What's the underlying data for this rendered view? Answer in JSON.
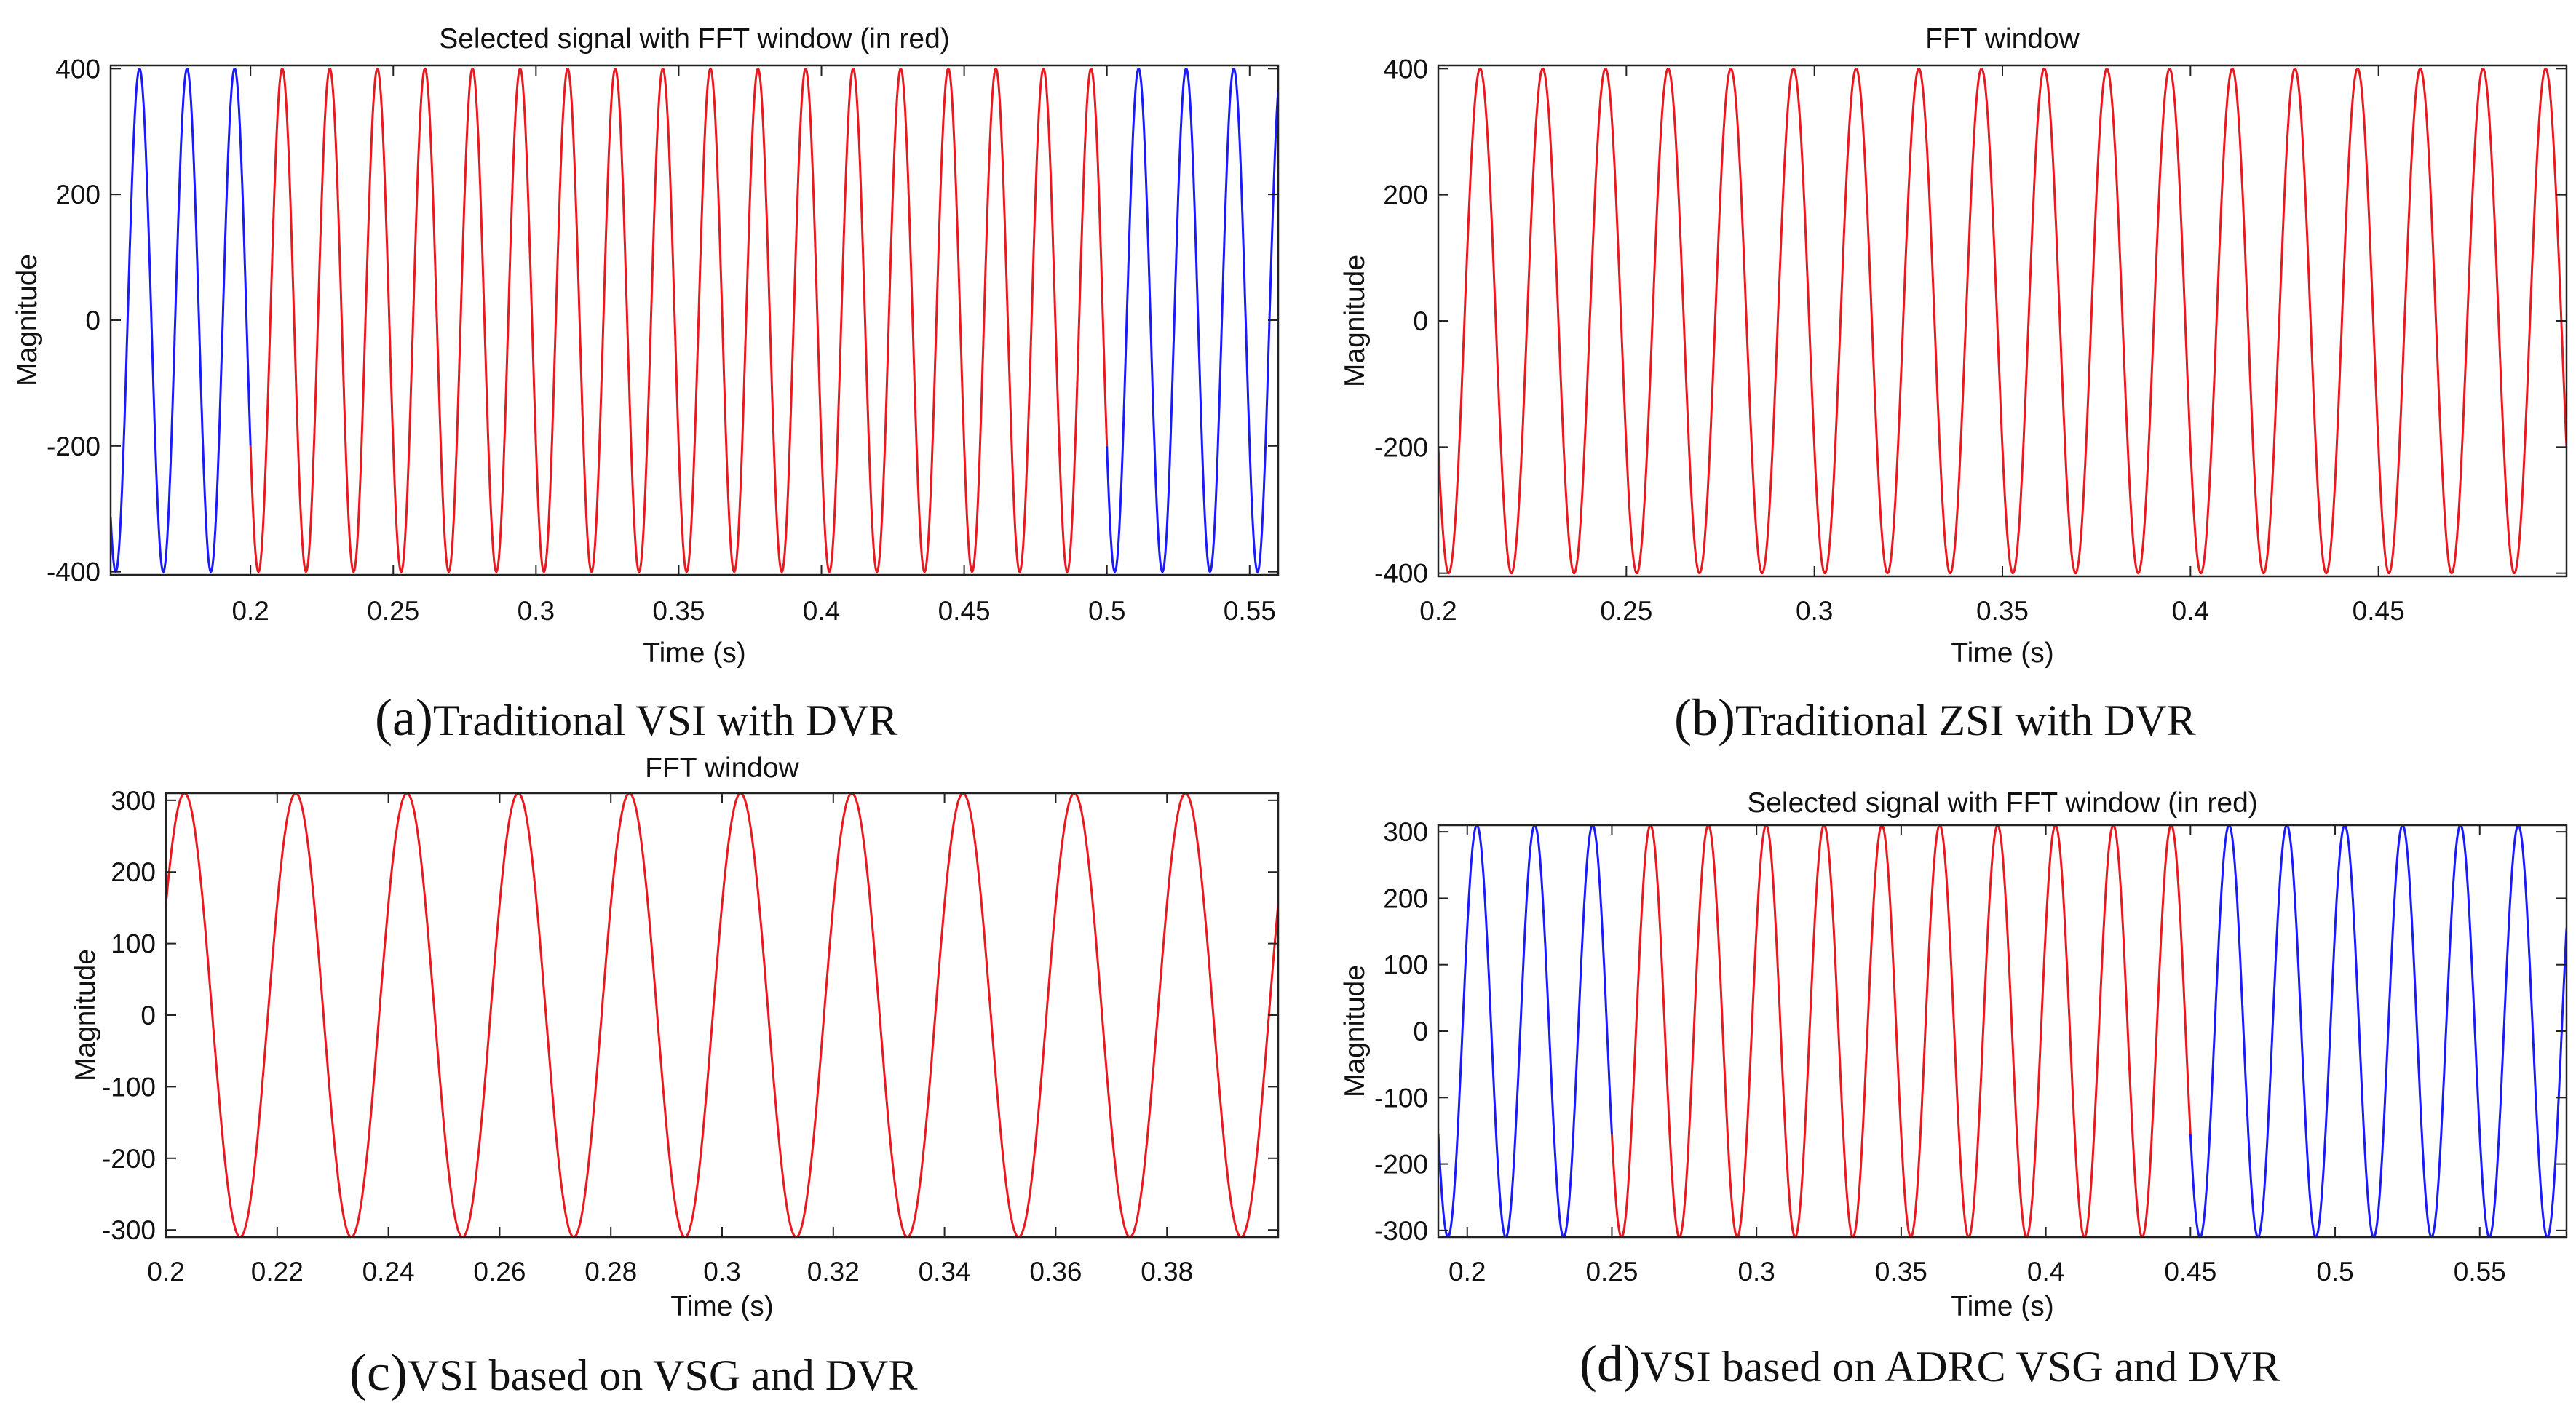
{
  "chart_data": [
    {
      "id": "a",
      "type": "line",
      "title": "Selected signal with FFT window (in red)",
      "xlabel": "Time (s)",
      "ylabel": "Magnitude",
      "xlim": [
        0.151,
        0.56
      ],
      "ylim": [
        -405,
        405
      ],
      "xticks": [
        0.2,
        0.25,
        0.3,
        0.35,
        0.4,
        0.45,
        0.5,
        0.55
      ],
      "xtick_labels": [
        "0.2",
        "0.25",
        "0.3",
        "0.35",
        "0.4",
        "0.45",
        "0.5",
        "0.55"
      ],
      "yticks": [
        -400,
        -200,
        0,
        200,
        400
      ],
      "ytick_labels": [
        "-400",
        "-200",
        "0",
        "200",
        "400"
      ],
      "signal": {
        "amplitude": 400,
        "frequency_hz": 60,
        "phase_deg": 210
      },
      "series": [
        {
          "name": "Signal",
          "color": "#1a1aff",
          "x_range": [
            0.151,
            0.2
          ]
        },
        {
          "name": "FFT window",
          "color": "#e8191f",
          "x_range": [
            0.2,
            0.5
          ]
        },
        {
          "name": "Signal",
          "color": "#1a1aff",
          "x_range": [
            0.5,
            0.56
          ]
        }
      ],
      "caption_letter": "(a)",
      "caption_text": "Traditional VSI with DVR"
    },
    {
      "id": "b",
      "type": "line",
      "title": "FFT window",
      "xlabel": "Time (s)",
      "ylabel": "Magnitude",
      "xlim": [
        0.2,
        0.5
      ],
      "ylim": [
        -405,
        405
      ],
      "xticks": [
        0.2,
        0.25,
        0.3,
        0.35,
        0.4,
        0.45
      ],
      "xtick_labels": [
        "0.2",
        "0.25",
        "0.3",
        "0.35",
        "0.4",
        "0.45"
      ],
      "yticks": [
        -400,
        -200,
        0,
        200,
        400
      ],
      "ytick_labels": [
        "-400",
        "-200",
        "0",
        "200",
        "400"
      ],
      "signal": {
        "amplitude": 400,
        "frequency_hz": 60,
        "phase_deg": 210
      },
      "series": [
        {
          "name": "FFT window",
          "color": "#e8191f",
          "x_range": [
            0.2,
            0.5
          ]
        }
      ],
      "caption_letter": "(b)",
      "caption_text": "Traditional ZSI with DVR"
    },
    {
      "id": "c",
      "type": "line",
      "title": "FFT window",
      "xlabel": "Time (s)",
      "ylabel": "Magnitude",
      "xlim": [
        0.2,
        0.4
      ],
      "ylim": [
        -310,
        310
      ],
      "xticks": [
        0.2,
        0.22,
        0.24,
        0.26,
        0.28,
        0.3,
        0.32,
        0.34,
        0.36,
        0.38
      ],
      "xtick_labels": [
        "0.2",
        "0.22",
        "0.24",
        "0.26",
        "0.28",
        "0.3",
        "0.32",
        "0.34",
        "0.36",
        "0.38"
      ],
      "yticks": [
        -300,
        -200,
        -100,
        0,
        100,
        200,
        300
      ],
      "ytick_labels": [
        "-300",
        "-200",
        "-100",
        "0",
        "100",
        "200",
        "300"
      ],
      "signal": {
        "amplitude": 310,
        "frequency_hz": 50,
        "phase_deg": 30
      },
      "series": [
        {
          "name": "FFT window",
          "color": "#e8191f",
          "x_range": [
            0.2,
            0.4
          ]
        }
      ],
      "caption_letter": "(c)",
      "caption_text": "VSI based on VSG and DVR"
    },
    {
      "id": "d",
      "type": "line",
      "title": "Selected signal with FFT window (in red)",
      "xlabel": "Time (s)",
      "ylabel": "Magnitude",
      "xlim": [
        0.19,
        0.58
      ],
      "ylim": [
        -310,
        310
      ],
      "xticks": [
        0.2,
        0.25,
        0.3,
        0.35,
        0.4,
        0.45,
        0.5,
        0.55
      ],
      "xtick_labels": [
        "0.2",
        "0.25",
        "0.3",
        "0.35",
        "0.4",
        "0.45",
        "0.5",
        "0.55"
      ],
      "yticks": [
        -300,
        -200,
        -100,
        0,
        100,
        200,
        300
      ],
      "ytick_labels": [
        "-300",
        "-200",
        "-100",
        "0",
        "100",
        "200",
        "300"
      ],
      "signal": {
        "amplitude": 310,
        "frequency_hz": 50,
        "phase_deg": 30
      },
      "series": [
        {
          "name": "Signal",
          "color": "#1a1aff",
          "x_range": [
            0.19,
            0.25
          ]
        },
        {
          "name": "FFT window",
          "color": "#e8191f",
          "x_range": [
            0.25,
            0.45
          ]
        },
        {
          "name": "Signal",
          "color": "#1a1aff",
          "x_range": [
            0.45,
            0.58
          ]
        }
      ],
      "caption_letter": "(d)",
      "caption_text": "VSI based on ADRC VSG and DVR"
    }
  ]
}
